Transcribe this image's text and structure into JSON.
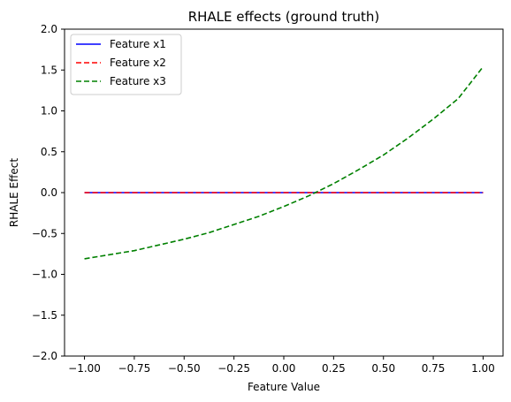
{
  "chart_data": {
    "type": "line",
    "title": "RHALE effects (ground truth)",
    "xlabel": "Feature Value",
    "ylabel": "RHALE Effect",
    "xlim": [
      -1.1,
      1.1
    ],
    "ylim": [
      -2.0,
      2.0
    ],
    "xticks": [
      "-1.00",
      "-0.75",
      "-0.50",
      "-0.25",
      "0.00",
      "0.25",
      "0.50",
      "0.75",
      "1.00"
    ],
    "yticks": [
      "-2.0",
      "-1.5",
      "-1.0",
      "-0.5",
      "0.0",
      "0.5",
      "1.0",
      "1.5",
      "2.0"
    ],
    "grid": false,
    "legend_position": "top-left",
    "series": [
      {
        "name": "Feature x1",
        "color": "#0000ff",
        "style": "solid",
        "x": [
          -1.0,
          -0.75,
          -0.5,
          -0.25,
          0.0,
          0.25,
          0.5,
          0.75,
          1.0
        ],
        "y": [
          0.0,
          0.0,
          0.0,
          0.0,
          0.0,
          0.0,
          0.0,
          0.0,
          0.0
        ]
      },
      {
        "name": "Feature x2",
        "color": "#ff0000",
        "style": "dashed",
        "x": [
          -1.0,
          -0.75,
          -0.5,
          -0.25,
          0.0,
          0.25,
          0.5,
          0.75,
          1.0
        ],
        "y": [
          0.0,
          0.0,
          0.0,
          0.0,
          0.0,
          0.0,
          0.0,
          0.0,
          0.0
        ]
      },
      {
        "name": "Feature x3",
        "color": "#008000",
        "style": "dashed",
        "x": [
          -1.0,
          -0.875,
          -0.75,
          -0.625,
          -0.5,
          -0.375,
          -0.25,
          -0.125,
          0.0,
          0.125,
          0.25,
          0.375,
          0.5,
          0.625,
          0.75,
          0.875,
          1.0
        ],
        "y": [
          -0.81,
          -0.76,
          -0.71,
          -0.64,
          -0.57,
          -0.49,
          -0.39,
          -0.29,
          -0.17,
          -0.04,
          0.11,
          0.28,
          0.46,
          0.67,
          0.9,
          1.15,
          1.54
        ]
      }
    ]
  }
}
